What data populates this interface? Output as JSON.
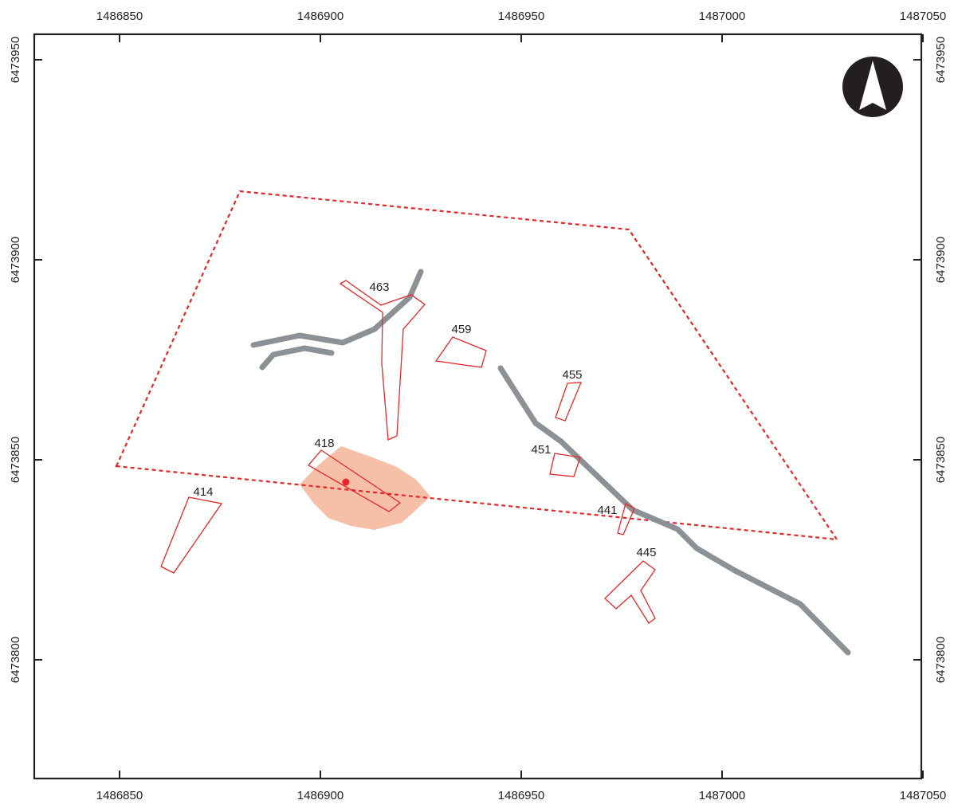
{
  "map": {
    "x_ticks": [
      {
        "value": 1486850,
        "label": "1486850"
      },
      {
        "value": 1486900,
        "label": "1486900"
      },
      {
        "value": 1486950,
        "label": "1486950"
      },
      {
        "value": 1487000,
        "label": "1487000"
      },
      {
        "value": 1487050,
        "label": "1487050"
      }
    ],
    "y_ticks": [
      {
        "value": 6473950,
        "label": "6473950"
      },
      {
        "value": 6473900,
        "label": "6473900"
      },
      {
        "value": 6473850,
        "label": "6473850"
      },
      {
        "value": 6473800,
        "label": "6473800"
      }
    ],
    "colors": {
      "frame": "#231f20",
      "feature_outline": "#e8262a",
      "boundary": "#e8262a",
      "road": "#8c9196",
      "highlight_fill": "#f3a98a",
      "point": "#e8262a",
      "north_arrow": "#231f20"
    },
    "north_arrow": {
      "icon": "north-arrow-icon"
    },
    "features": [
      {
        "id": "463",
        "label": "463"
      },
      {
        "id": "459",
        "label": "459"
      },
      {
        "id": "455",
        "label": "455"
      },
      {
        "id": "451",
        "label": "451"
      },
      {
        "id": "441",
        "label": "441"
      },
      {
        "id": "445",
        "label": "445"
      },
      {
        "id": "418",
        "label": "418"
      },
      {
        "id": "414",
        "label": "414"
      }
    ]
  }
}
